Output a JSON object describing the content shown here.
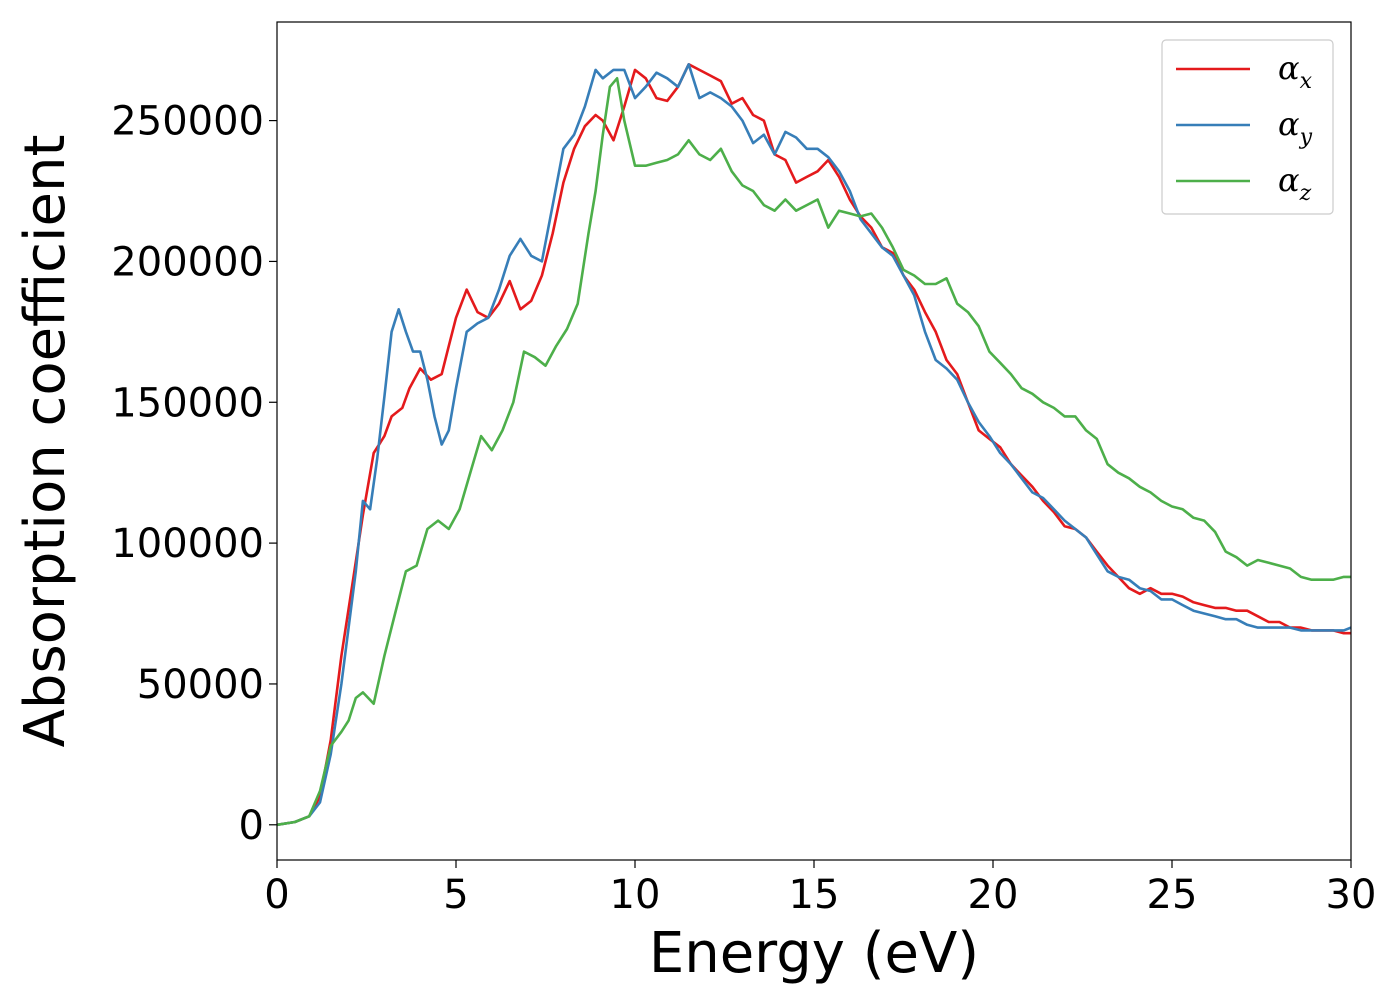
{
  "chart_data": {
    "type": "line",
    "title": "",
    "xlabel": "Energy (eV)",
    "ylabel": "Absorption coefficient",
    "xlim": [
      0,
      30
    ],
    "ylim": [
      -12500,
      285000
    ],
    "xticks": [
      0,
      5,
      10,
      15,
      20,
      25,
      30
    ],
    "yticks": [
      0,
      50000,
      100000,
      150000,
      200000,
      250000
    ],
    "grid": false,
    "legend_position": "top-right",
    "series": [
      {
        "name": "α",
        "subscript": "x",
        "color": "#e41a1c",
        "x": [
          0,
          0.5,
          0.9,
          1.2,
          1.5,
          1.8,
          2.1,
          2.4,
          2.7,
          3.0,
          3.2,
          3.5,
          3.7,
          4.0,
          4.3,
          4.6,
          4.8,
          5.0,
          5.3,
          5.6,
          5.9,
          6.2,
          6.5,
          6.8,
          7.1,
          7.4,
          7.7,
          8.0,
          8.3,
          8.6,
          8.9,
          9.1,
          9.4,
          9.7,
          10.0,
          10.3,
          10.6,
          10.9,
          11.2,
          11.5,
          11.8,
          12.1,
          12.4,
          12.7,
          13.0,
          13.3,
          13.6,
          13.9,
          14.2,
          14.5,
          14.8,
          15.1,
          15.4,
          15.7,
          16.0,
          16.3,
          16.6,
          16.9,
          17.2,
          17.5,
          17.8,
          18.1,
          18.4,
          18.7,
          19.0,
          19.3,
          19.6,
          19.9,
          20.2,
          20.5,
          20.8,
          21.1,
          21.4,
          21.7,
          22.0,
          22.3,
          22.6,
          22.9,
          23.2,
          23.5,
          23.8,
          24.1,
          24.4,
          24.7,
          25.0,
          25.3,
          25.6,
          25.9,
          26.2,
          26.5,
          26.8,
          27.1,
          27.4,
          27.7,
          28.0,
          28.3,
          28.6,
          28.9,
          29.2,
          29.5,
          29.8,
          30.0
        ],
        "y": [
          0,
          1000,
          3000,
          10000,
          30000,
          60000,
          85000,
          110000,
          132000,
          138000,
          145000,
          148000,
          155000,
          162000,
          158000,
          160000,
          170000,
          180000,
          190000,
          182000,
          180000,
          185000,
          193000,
          183000,
          186000,
          195000,
          210000,
          228000,
          240000,
          248000,
          252000,
          250000,
          243000,
          255000,
          268000,
          265000,
          258000,
          257000,
          262000,
          270000,
          268000,
          266000,
          264000,
          256000,
          258000,
          252000,
          250000,
          238000,
          236000,
          228000,
          230000,
          232000,
          236000,
          230000,
          222000,
          216000,
          212000,
          205000,
          203000,
          195000,
          190000,
          182000,
          175000,
          165000,
          160000,
          150000,
          140000,
          137000,
          134000,
          128000,
          124000,
          120000,
          115000,
          111000,
          106000,
          105000,
          102000,
          97000,
          92000,
          88000,
          84000,
          82000,
          84000,
          82000,
          82000,
          81000,
          79000,
          78000,
          77000,
          77000,
          76000,
          76000,
          74000,
          72000,
          72000,
          70000,
          70000,
          69000,
          69000,
          69000,
          68000,
          68000
        ]
      },
      {
        "name": "α",
        "subscript": "y",
        "color": "#377eb8",
        "x": [
          0,
          0.5,
          0.9,
          1.2,
          1.5,
          1.8,
          2.0,
          2.2,
          2.4,
          2.6,
          2.8,
          3.0,
          3.2,
          3.4,
          3.6,
          3.8,
          4.0,
          4.2,
          4.4,
          4.6,
          4.8,
          5.0,
          5.3,
          5.6,
          5.9,
          6.2,
          6.5,
          6.8,
          7.1,
          7.4,
          7.7,
          8.0,
          8.3,
          8.6,
          8.9,
          9.1,
          9.4,
          9.7,
          10.0,
          10.3,
          10.6,
          10.9,
          11.2,
          11.5,
          11.8,
          12.1,
          12.4,
          12.7,
          13.0,
          13.3,
          13.6,
          13.9,
          14.2,
          14.5,
          14.8,
          15.1,
          15.4,
          15.7,
          16.0,
          16.3,
          16.6,
          16.9,
          17.2,
          17.5,
          17.8,
          18.1,
          18.4,
          18.7,
          19.0,
          19.3,
          19.6,
          19.9,
          20.2,
          20.5,
          20.8,
          21.1,
          21.4,
          21.7,
          22.0,
          22.3,
          22.6,
          22.9,
          23.2,
          23.5,
          23.8,
          24.1,
          24.4,
          24.7,
          25.0,
          25.3,
          25.6,
          25.9,
          26.2,
          26.5,
          26.8,
          27.1,
          27.4,
          27.7,
          28.0,
          28.3,
          28.6,
          28.9,
          29.2,
          29.5,
          29.8,
          30.0
        ],
        "y": [
          0,
          1000,
          3000,
          8000,
          25000,
          50000,
          70000,
          90000,
          115000,
          112000,
          130000,
          152000,
          175000,
          183000,
          175000,
          168000,
          168000,
          158000,
          145000,
          135000,
          140000,
          155000,
          175000,
          178000,
          180000,
          190000,
          202000,
          208000,
          202000,
          200000,
          220000,
          240000,
          245000,
          255000,
          268000,
          265000,
          268000,
          268000,
          258000,
          262000,
          267000,
          265000,
          262000,
          270000,
          258000,
          260000,
          258000,
          255000,
          250000,
          242000,
          245000,
          238000,
          246000,
          244000,
          240000,
          240000,
          237000,
          232000,
          225000,
          215000,
          210000,
          205000,
          202000,
          195000,
          188000,
          175000,
          165000,
          162000,
          158000,
          150000,
          143000,
          138000,
          132000,
          128000,
          123000,
          118000,
          116000,
          112000,
          108000,
          105000,
          102000,
          96000,
          90000,
          88000,
          87000,
          84000,
          83000,
          80000,
          80000,
          78000,
          76000,
          75000,
          74000,
          73000,
          73000,
          71000,
          70000,
          70000,
          70000,
          70000,
          69000,
          69000,
          69000,
          69000,
          69000,
          70000
        ]
      },
      {
        "name": "α",
        "subscript": "z",
        "color": "#4daf4a",
        "x": [
          0,
          0.5,
          0.9,
          1.2,
          1.5,
          1.8,
          2.0,
          2.2,
          2.4,
          2.7,
          3.0,
          3.3,
          3.6,
          3.9,
          4.2,
          4.5,
          4.8,
          5.1,
          5.4,
          5.7,
          6.0,
          6.3,
          6.6,
          6.9,
          7.2,
          7.5,
          7.8,
          8.1,
          8.4,
          8.7,
          8.9,
          9.1,
          9.3,
          9.5,
          9.7,
          10.0,
          10.3,
          10.6,
          10.9,
          11.2,
          11.5,
          11.8,
          12.1,
          12.4,
          12.7,
          13.0,
          13.3,
          13.6,
          13.9,
          14.2,
          14.5,
          14.8,
          15.1,
          15.4,
          15.7,
          16.0,
          16.3,
          16.6,
          16.9,
          17.2,
          17.5,
          17.8,
          18.1,
          18.4,
          18.7,
          19.0,
          19.3,
          19.6,
          19.9,
          20.2,
          20.5,
          20.8,
          21.1,
          21.4,
          21.7,
          22.0,
          22.3,
          22.6,
          22.9,
          23.2,
          23.5,
          23.8,
          24.1,
          24.4,
          24.7,
          25.0,
          25.3,
          25.6,
          25.9,
          26.2,
          26.5,
          26.8,
          27.1,
          27.4,
          27.7,
          28.0,
          28.3,
          28.6,
          28.9,
          29.2,
          29.5,
          29.8,
          30.0
        ],
        "y": [
          0,
          1000,
          3000,
          12000,
          28000,
          33000,
          37000,
          45000,
          47000,
          43000,
          60000,
          75000,
          90000,
          92000,
          105000,
          108000,
          105000,
          112000,
          125000,
          138000,
          133000,
          140000,
          150000,
          168000,
          166000,
          163000,
          170000,
          176000,
          185000,
          210000,
          225000,
          245000,
          262000,
          265000,
          250000,
          234000,
          234000,
          235000,
          236000,
          238000,
          243000,
          238000,
          236000,
          240000,
          232000,
          227000,
          225000,
          220000,
          218000,
          222000,
          218000,
          220000,
          222000,
          212000,
          218000,
          217000,
          216000,
          217000,
          212000,
          205000,
          197000,
          195000,
          192000,
          192000,
          194000,
          185000,
          182000,
          177000,
          168000,
          164000,
          160000,
          155000,
          153000,
          150000,
          148000,
          145000,
          145000,
          140000,
          137000,
          128000,
          125000,
          123000,
          120000,
          118000,
          115000,
          113000,
          112000,
          109000,
          108000,
          104000,
          97000,
          95000,
          92000,
          94000,
          93000,
          92000,
          91000,
          88000,
          87000,
          87000,
          87000,
          88000,
          88000
        ]
      }
    ]
  }
}
